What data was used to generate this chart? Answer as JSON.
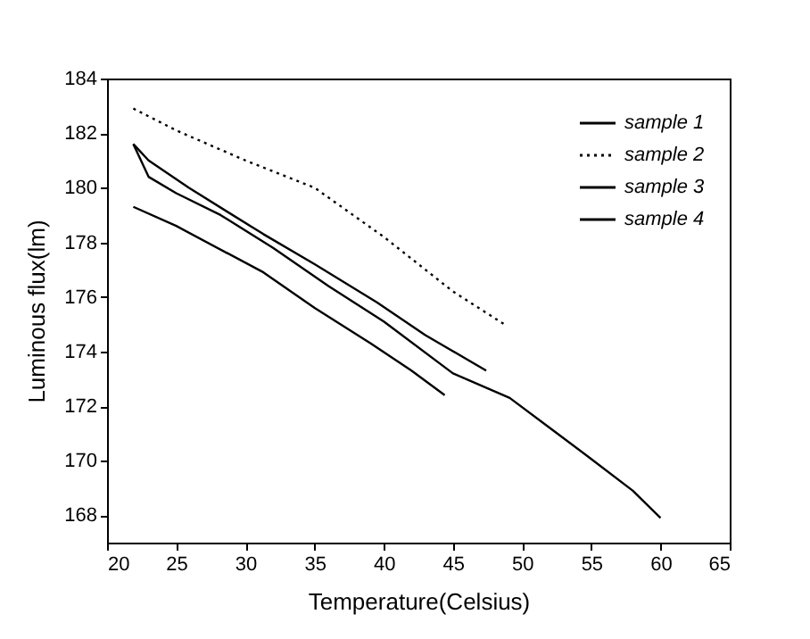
{
  "chart_data": {
    "type": "line",
    "xlabel": "Temperature(Celsius)",
    "ylabel": "Luminous flux(lm)",
    "xlim": [
      20,
      65
    ],
    "xticks": [
      20,
      25,
      30,
      35,
      40,
      45,
      50,
      55,
      60,
      65
    ],
    "ylim": [
      167,
      184
    ],
    "yticks": [
      168,
      170,
      172,
      174,
      176,
      178,
      180,
      182,
      184
    ],
    "grid": false,
    "legend": "top right",
    "marker": "none",
    "series": [
      {
        "name": "sample 1",
        "color": "#000000",
        "line_style": "solid",
        "x": [
          21.9,
          23,
          25,
          28.2,
          32,
          36,
          40,
          45,
          49.1,
          52,
          54.9,
          58,
          60
        ],
        "values": [
          181.6,
          180.4,
          179.8,
          179.0,
          177.8,
          176.4,
          175.1,
          173.2,
          172.3,
          171.2,
          170.1,
          168.9,
          167.9
        ]
      },
      {
        "name": "sample 2",
        "color": "#000000",
        "line_style": "dotted",
        "x": [
          21.9,
          25,
          30,
          35,
          40,
          45,
          48.7
        ],
        "values": [
          182.9,
          182.1,
          181.0,
          180.0,
          178.2,
          176.2,
          175.0
        ]
      },
      {
        "name": "sample 3",
        "color": "#000000",
        "line_style": "solid",
        "x": [
          21.9,
          23,
          25.9,
          31.3,
          35,
          39.5,
          43,
          47.4
        ],
        "values": [
          181.6,
          181.0,
          180.0,
          178.3,
          177.2,
          175.8,
          174.6,
          173.3
        ]
      },
      {
        "name": "sample 4",
        "color": "#000000",
        "line_style": "solid",
        "x": [
          21.9,
          25,
          31.3,
          35,
          39.05,
          42,
          44.4
        ],
        "values": [
          179.3,
          178.6,
          176.9,
          175.6,
          174.3,
          173.3,
          172.4
        ]
      }
    ]
  }
}
